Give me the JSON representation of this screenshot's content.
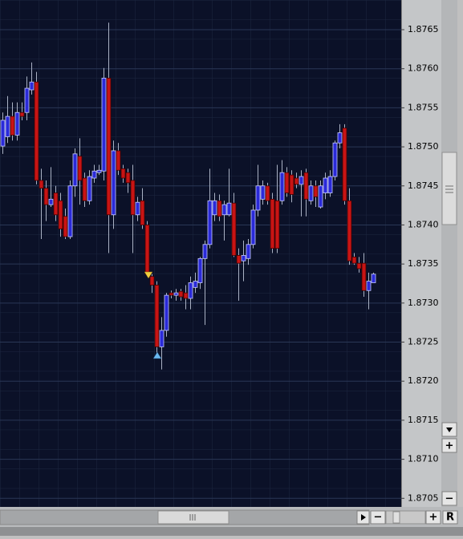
{
  "chart_data": {
    "type": "candlestick",
    "open": [
      1.87501,
      1.87513,
      1.87539,
      1.87515,
      1.87544,
      1.87544,
      1.87573,
      1.87583,
      1.87457,
      1.87447,
      1.87426,
      1.87441,
      1.87431,
      1.87411,
      1.87385,
      1.8745,
      1.87488,
      1.8746,
      1.87431,
      1.8746,
      1.87467,
      1.87469,
      1.87588,
      1.87413,
      1.87495,
      1.87472,
      1.87467,
      1.87457,
      1.87413,
      1.87431,
      1.874,
      1.87334,
      1.87323,
      1.87244,
      1.87265,
      1.87313,
      1.8731,
      1.87315,
      1.87313,
      1.87306,
      1.8732,
      1.87326,
      1.87357,
      1.87375,
      1.87413,
      1.87431,
      1.87413,
      1.87413,
      1.87428,
      1.87361,
      1.87354,
      1.87357,
      1.87375,
      1.87419,
      1.87433,
      1.8745,
      1.87433,
      1.87431,
      1.87431,
      1.87467,
      1.87464,
      1.8746,
      1.87452,
      1.87467,
      1.87431,
      1.8745,
      1.87423,
      1.87441,
      1.87441,
      1.87462,
      1.87505,
      1.87524,
      1.87431,
      1.87359,
      1.87351,
      1.87351,
      1.87316,
      1.87326
    ],
    "high": [
      1.87544,
      1.87565,
      1.87557,
      1.87557,
      1.87557,
      1.8759,
      1.87608,
      1.87596,
      1.87472,
      1.87457,
      1.87474,
      1.8745,
      1.87441,
      1.87421,
      1.87457,
      1.87498,
      1.87511,
      1.87467,
      1.8747,
      1.87477,
      1.87477,
      1.87601,
      1.87659,
      1.87508,
      1.87505,
      1.87477,
      1.87472,
      1.87477,
      1.87436,
      1.87447,
      1.87405,
      1.87337,
      1.87328,
      1.87282,
      1.87313,
      1.87316,
      1.87318,
      1.87318,
      1.87323,
      1.87334,
      1.87339,
      1.87359,
      1.8738,
      1.87472,
      1.87441,
      1.87439,
      1.87431,
      1.87472,
      1.87441,
      1.8737,
      1.8738,
      1.87382,
      1.87426,
      1.87477,
      1.87457,
      1.87454,
      1.87441,
      1.87477,
      1.87483,
      1.87474,
      1.8747,
      1.87467,
      1.8747,
      1.87472,
      1.87457,
      1.87457,
      1.87457,
      1.87467,
      1.8747,
      1.87508,
      1.87529,
      1.87529,
      1.87447,
      1.87364,
      1.87359,
      1.87364,
      1.87339,
      1.87339
    ],
    "low": [
      1.87491,
      1.87505,
      1.87508,
      1.87508,
      1.87534,
      1.87534,
      1.87567,
      1.87452,
      1.87382,
      1.87405,
      1.87423,
      1.87405,
      1.87385,
      1.87382,
      1.87382,
      1.87436,
      1.87426,
      1.87423,
      1.87426,
      1.87454,
      1.87464,
      1.87457,
      1.87364,
      1.87395,
      1.87464,
      1.87454,
      1.87441,
      1.87364,
      1.87405,
      1.87395,
      1.87334,
      1.87313,
      1.87231,
      1.87215,
      1.87257,
      1.87306,
      1.87303,
      1.87303,
      1.87292,
      1.87292,
      1.87313,
      1.87318,
      1.87272,
      1.8737,
      1.87405,
      1.87405,
      1.8738,
      1.87411,
      1.87359,
      1.87303,
      1.87328,
      1.87349,
      1.8737,
      1.87411,
      1.87426,
      1.87426,
      1.87364,
      1.87364,
      1.87426,
      1.87436,
      1.87429,
      1.87447,
      1.87411,
      1.87411,
      1.87426,
      1.87423,
      1.87421,
      1.87433,
      1.87436,
      1.87457,
      1.87498,
      1.87426,
      1.87349,
      1.87349,
      1.87339,
      1.87308,
      1.87292,
      1.87326
    ],
    "close": [
      1.87534,
      1.87539,
      1.87515,
      1.87544,
      1.87539,
      1.87575,
      1.87583,
      1.87457,
      1.87447,
      1.87426,
      1.87433,
      1.87413,
      1.87395,
      1.87385,
      1.8745,
      1.87491,
      1.87457,
      1.87431,
      1.87462,
      1.87469,
      1.8747,
      1.87588,
      1.87413,
      1.87495,
      1.8747,
      1.8746,
      1.87454,
      1.87413,
      1.87429,
      1.874,
      1.87337,
      1.87323,
      1.87244,
      1.87265,
      1.8731,
      1.8731,
      1.87313,
      1.87308,
      1.87306,
      1.87326,
      1.87328,
      1.87357,
      1.87375,
      1.87431,
      1.87431,
      1.87411,
      1.87426,
      1.87428,
      1.87361,
      1.87351,
      1.87361,
      1.87375,
      1.87419,
      1.8745,
      1.8745,
      1.87431,
      1.8737,
      1.8737,
      1.87467,
      1.87441,
      1.87439,
      1.87452,
      1.87462,
      1.87433,
      1.8745,
      1.87436,
      1.8745,
      1.8746,
      1.87462,
      1.87505,
      1.87518,
      1.87431,
      1.87354,
      1.87351,
      1.87344,
      1.87316,
      1.87328,
      1.87337
    ],
    "up_color": "#2a2ad8",
    "down_color": "#c81414",
    "ylim": [
      1.87039,
      1.87688
    ],
    "yticks": [
      1.8705,
      {
        "value": 1.871,
        "label": "1.8710"
      },
      1.8715,
      {
        "value": 1.872,
        "label": "1.8720"
      },
      1.8725,
      {
        "value": 1.873,
        "label": "1.8730"
      },
      1.8735,
      {
        "value": 1.874,
        "label": "1.8740"
      },
      1.8745,
      {
        "value": 1.875,
        "label": "1.8750"
      },
      1.8755,
      {
        "value": 1.876,
        "label": "1.8760"
      },
      1.8765
    ],
    "grid": true
  },
  "controls": {
    "vertical_zoom_in": "+",
    "vertical_zoom_out": "−",
    "horizontal_zoom_out": "−",
    "horizontal_zoom_in": "+",
    "reset": "R"
  }
}
